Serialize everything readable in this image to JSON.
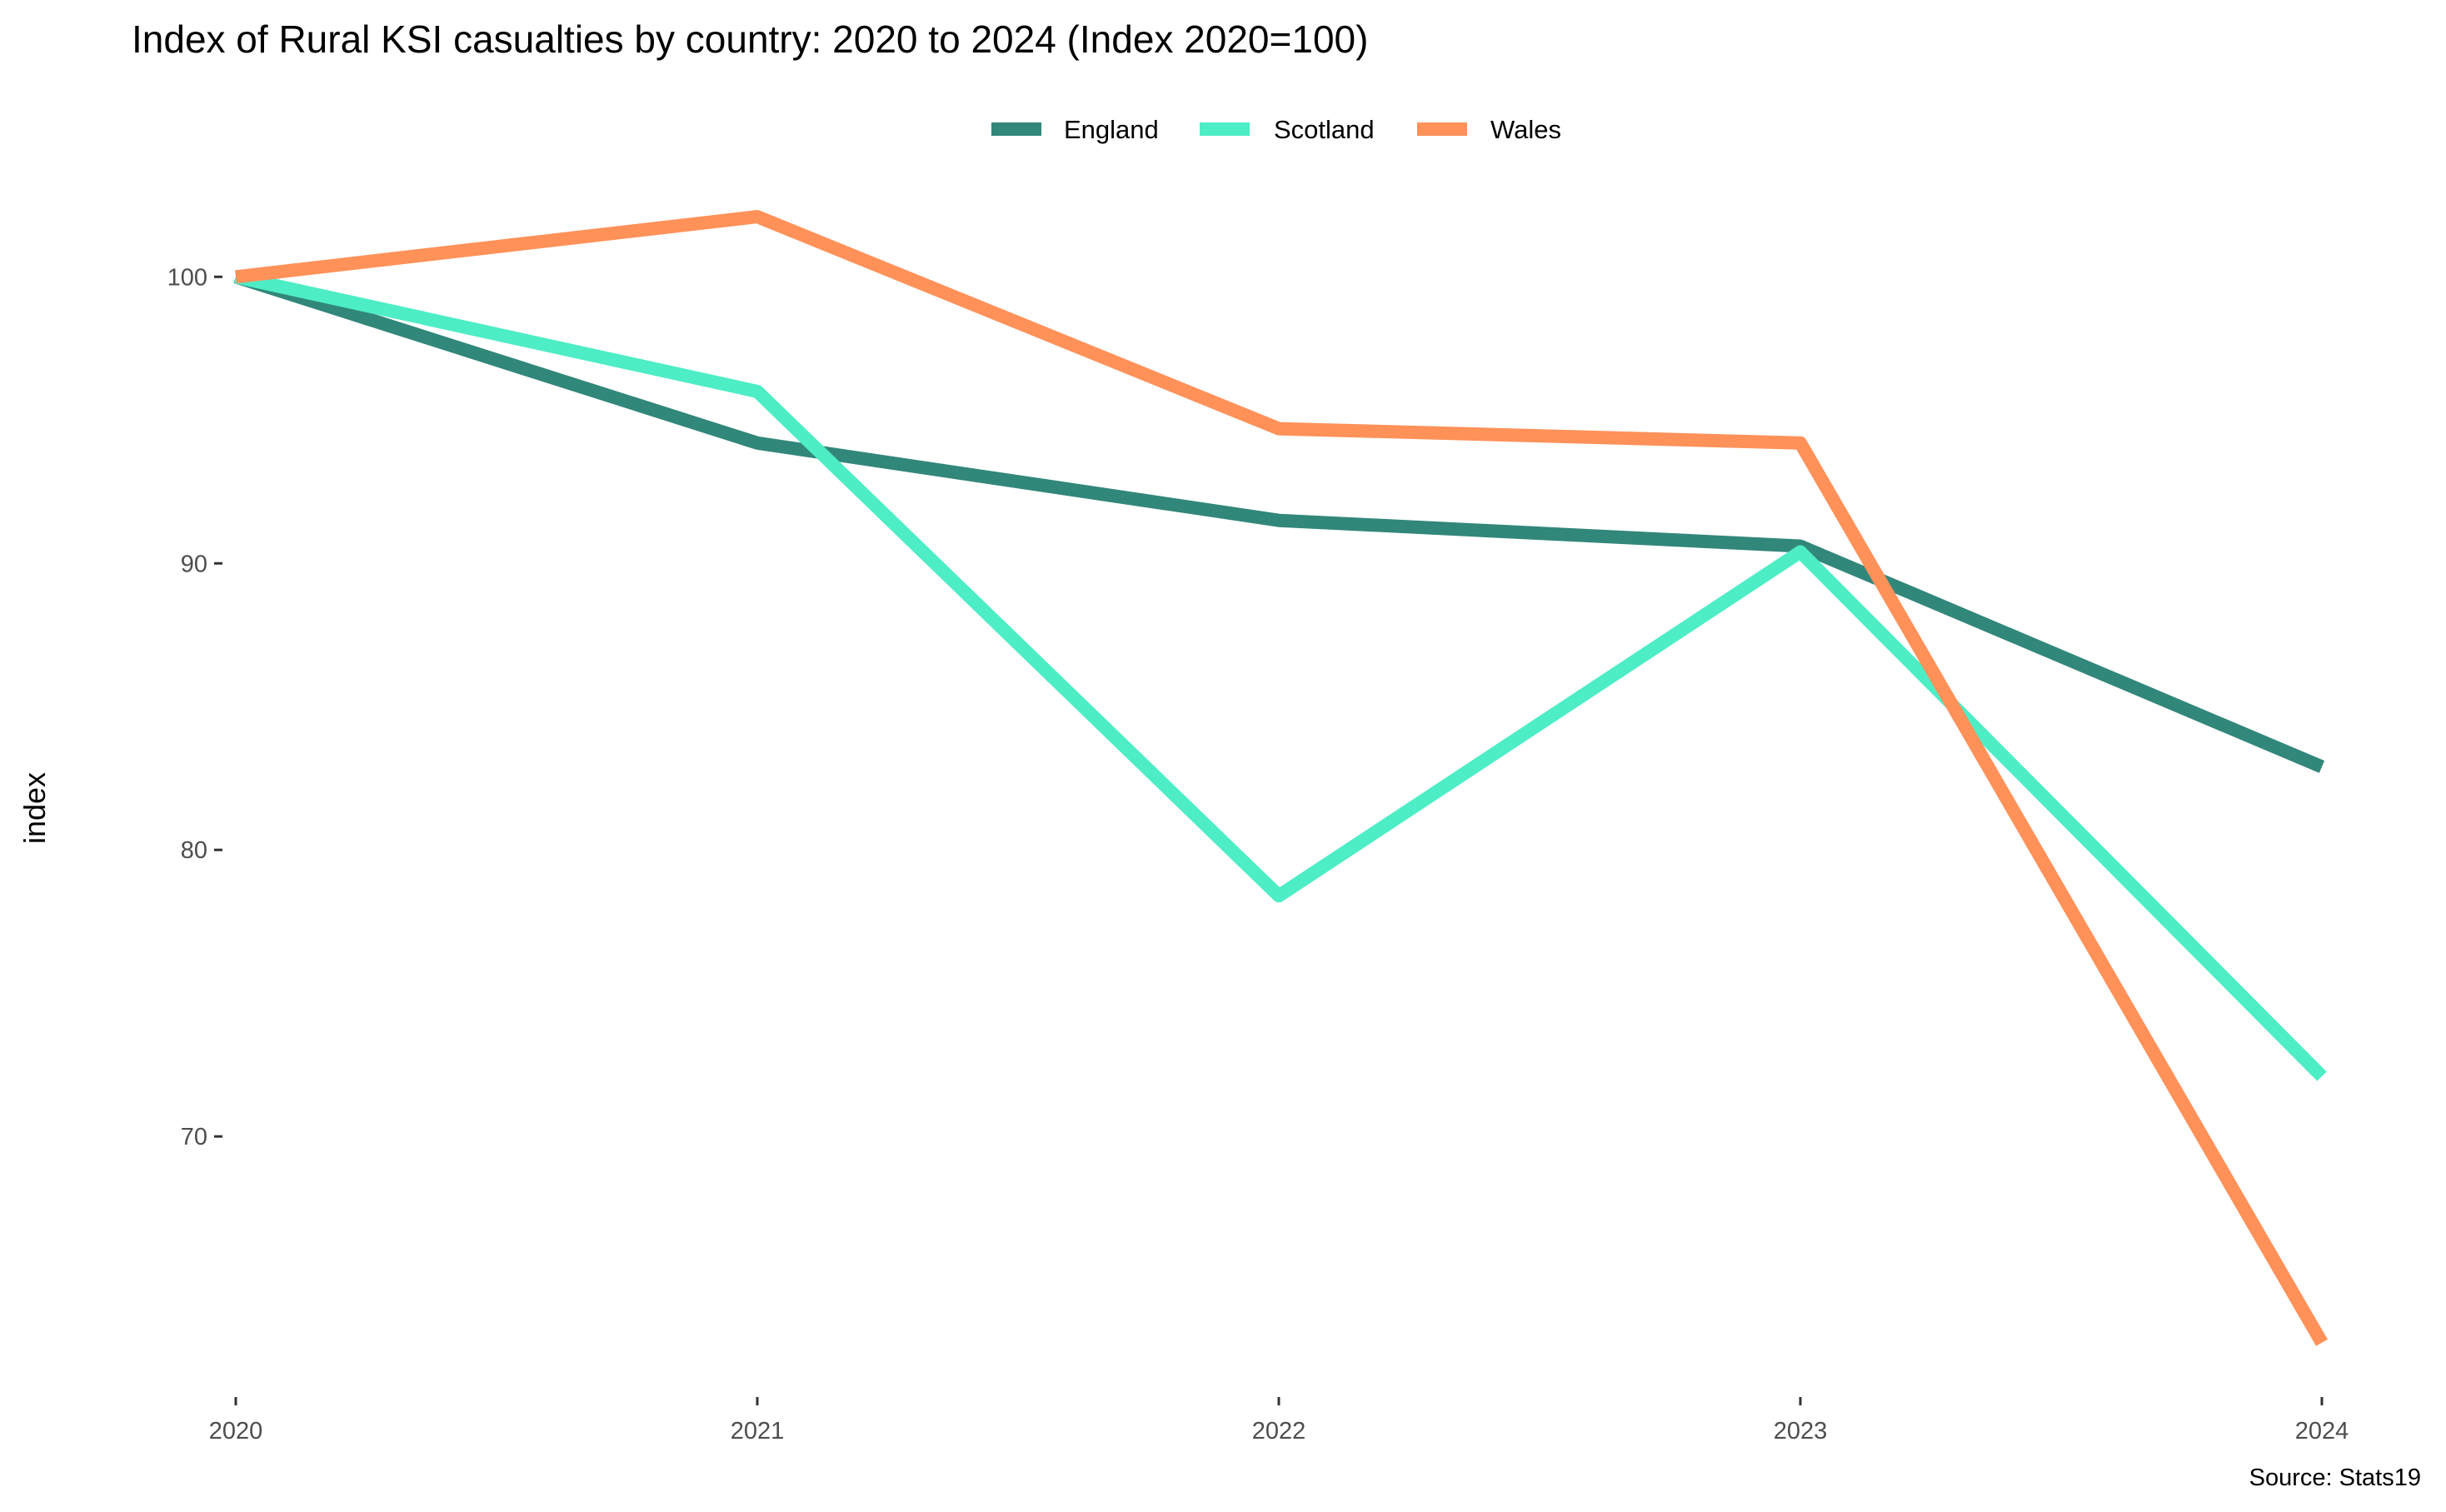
{
  "chart_data": {
    "type": "line",
    "title": "Index of Rural KSI casualties by country: 2020 to 2024 (Index 2020=100)",
    "xlabel": "",
    "ylabel": "index",
    "caption": "Source: Stats19",
    "x": [
      "2020",
      "2021",
      "2022",
      "2023",
      "2024"
    ],
    "x_values": [
      2020,
      2021,
      2022,
      2023,
      2024
    ],
    "ylim": [
      61.4,
      105.3
    ],
    "yticks": [
      70,
      80,
      90,
      100
    ],
    "ytick_labels": [
      "70",
      "80",
      "90",
      "100"
    ],
    "grid": false,
    "legend": {
      "position": "top",
      "entries": [
        "England",
        "Scotland",
        "Wales"
      ]
    },
    "series": [
      {
        "name": "England",
        "color": "#31877A",
        "values": [
          100,
          94.2,
          91.5,
          90.6,
          82.9
        ]
      },
      {
        "name": "Scotland",
        "color": "#4DEDC5",
        "values": [
          100,
          96.0,
          78.4,
          90.4,
          72.1
        ]
      },
      {
        "name": "Wales",
        "color": "#FF9159",
        "values": [
          100,
          102.1,
          94.7,
          94.2,
          62.8
        ]
      }
    ]
  }
}
